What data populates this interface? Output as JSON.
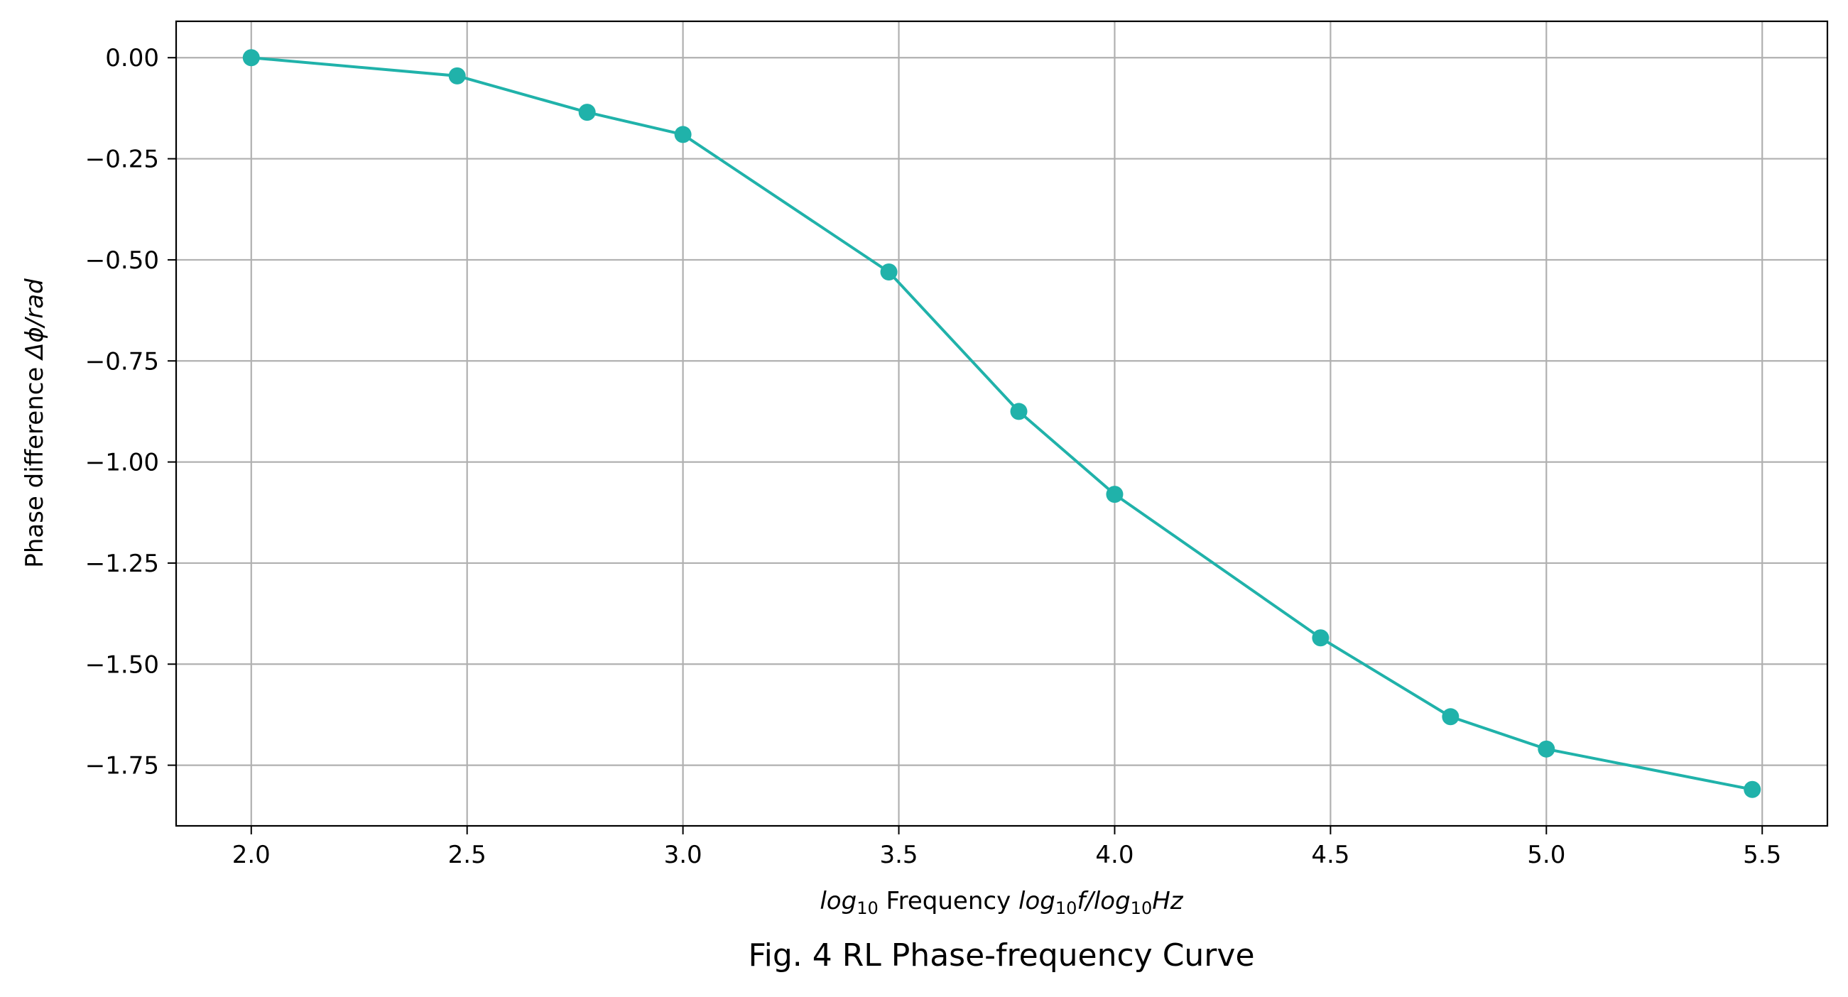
{
  "chart_data": {
    "type": "line",
    "x": [
      2.0,
      2.477,
      2.778,
      3.0,
      3.477,
      3.778,
      4.0,
      4.477,
      4.778,
      5.0,
      5.477
    ],
    "series": [
      {
        "values": [
          0.0,
          -0.045,
          -0.135,
          -0.19,
          -0.53,
          -0.875,
          -1.08,
          -1.435,
          -1.63,
          -1.71,
          -1.81
        ]
      }
    ],
    "xticks": [
      2.0,
      2.5,
      3.0,
      3.5,
      4.0,
      4.5,
      5.0,
      5.5
    ],
    "xtick_labels": [
      "2.0",
      "2.5",
      "3.0",
      "3.5",
      "4.0",
      "4.5",
      "5.0",
      "5.5"
    ],
    "yticks": [
      0.0,
      -0.25,
      -0.5,
      -0.75,
      -1.0,
      -1.25,
      -1.5,
      -1.75
    ],
    "ytick_labels": [
      "0.00",
      "−0.25",
      "−0.50",
      "−0.75",
      "−1.00",
      "−1.25",
      "−1.50",
      "−1.75"
    ],
    "xlim": [
      1.826,
      5.651
    ],
    "ylim": [
      -1.9,
      0.09
    ],
    "xlabel": {
      "p1": "log",
      "p1_sub": "10",
      "p2": " Frequency ",
      "p3": "log",
      "p3_sub": "10",
      "p4": "f/log",
      "p4_sub": "10",
      "p5": "Hz"
    },
    "ylabel": {
      "p1": "Phase difference ",
      "p2": "Δϕ/rad"
    },
    "caption": "Fig. 4 RL Phase-frequency Curve",
    "grid": true,
    "legend": "none",
    "colors": {
      "line": "#20b2aa",
      "marker": "#20b2aa",
      "grid": "#b0b0b0",
      "axes": "#000000"
    }
  }
}
